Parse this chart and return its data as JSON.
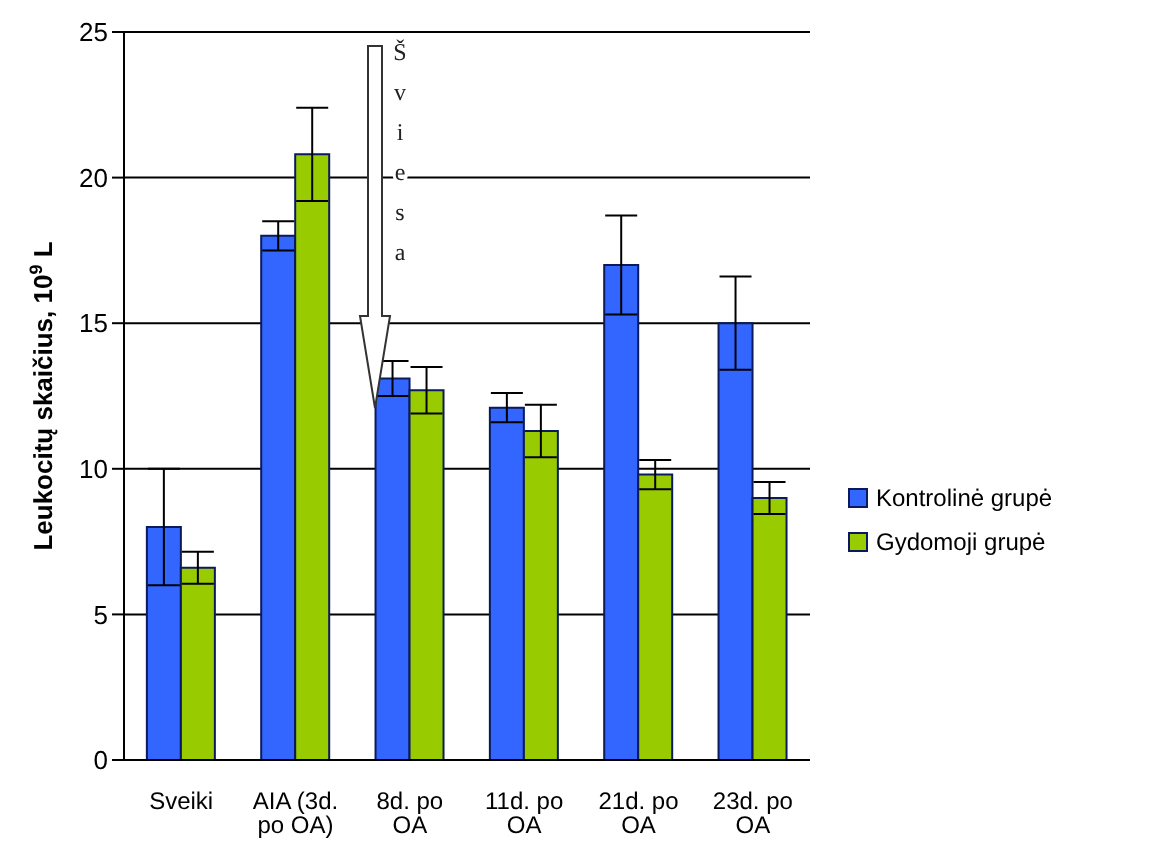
{
  "chart_data": {
    "type": "bar",
    "ylabel": "Leukocitų skaičius, 10$^{9}$ L",
    "categories": [
      "Sveiki",
      "AIA (3d. po OA)",
      "8d. po OA",
      "11d. po OA",
      "21d. po OA",
      "23d. po OA"
    ],
    "series": [
      {
        "name": "Kontrolinė grupė",
        "color": "#3366ff",
        "values": [
          8,
          18,
          13.1,
          12.1,
          17,
          15
        ],
        "errors": [
          2,
          0.5,
          0.6,
          0.5,
          1.7,
          1.6
        ]
      },
      {
        "name": "Gydomoji grupė",
        "color": "#99cc00",
        "values": [
          6.6,
          20.8,
          12.7,
          11.3,
          9.8,
          9
        ],
        "errors": [
          0.55,
          1.6,
          0.8,
          0.9,
          0.5,
          0.55
        ]
      }
    ],
    "ylim": [
      0,
      25
    ],
    "yticks": [
      0,
      5,
      10,
      15,
      20,
      25
    ],
    "grid": "y",
    "legend": "right",
    "annotations": [
      "Šviesa"
    ]
  }
}
